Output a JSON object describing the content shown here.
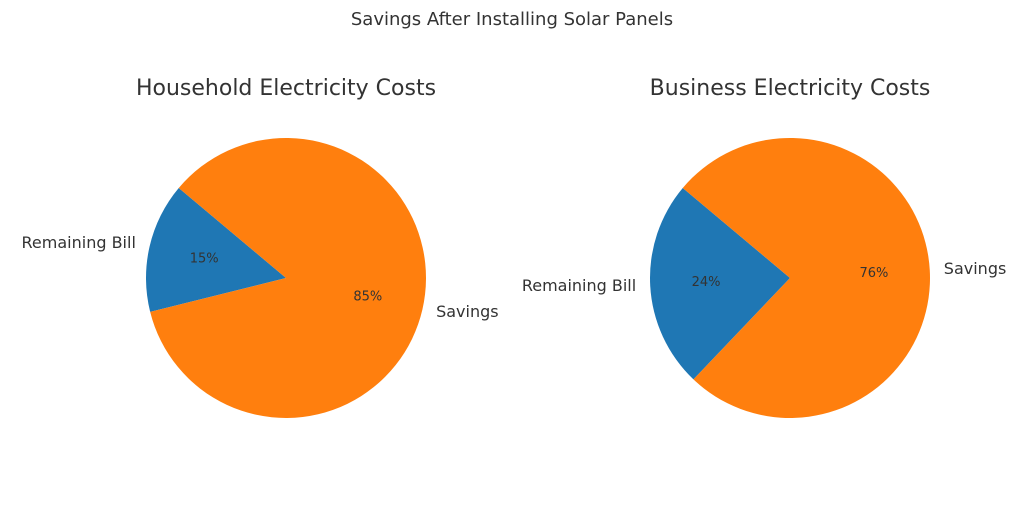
{
  "figure": {
    "title": "Savings After Installing Solar Panels"
  },
  "chart_data": [
    {
      "type": "pie",
      "title": "Household Electricity Costs",
      "labels": [
        "Remaining Bill",
        "Savings"
      ],
      "values": [
        15,
        85
      ],
      "percent_labels": [
        "15%",
        "85%"
      ],
      "colors": [
        "#1f77b4",
        "#ff7f0e"
      ],
      "start_angle_deg": 140,
      "direction": "counterclockwise"
    },
    {
      "type": "pie",
      "title": "Business Electricity Costs",
      "labels": [
        "Remaining Bill",
        "Savings"
      ],
      "values": [
        24,
        76
      ],
      "percent_labels": [
        "24%",
        "76%"
      ],
      "colors": [
        "#1f77b4",
        "#ff7f0e"
      ],
      "start_angle_deg": 140,
      "direction": "counterclockwise"
    }
  ]
}
